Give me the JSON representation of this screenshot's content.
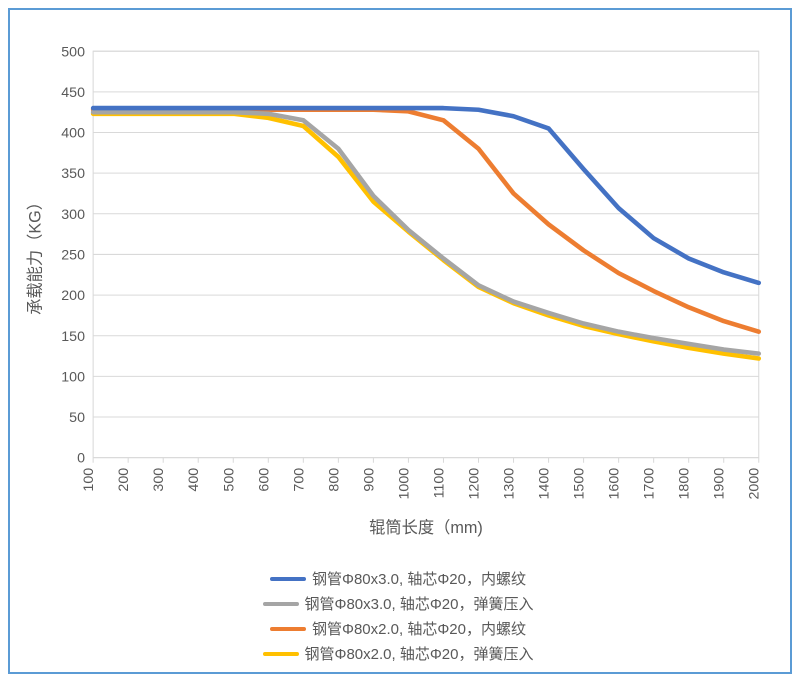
{
  "chart": {
    "type": "line",
    "background_color": "#ffffff",
    "frame_border_color": "#5b9bd5",
    "grid_color": "#d9d9d9",
    "axis_text_color": "#595959",
    "axis_title_fontsize": 16,
    "tick_fontsize": 14,
    "legend_fontsize": 15,
    "line_width": 4.5,
    "x": {
      "label": "辊筒长度（mm)",
      "min": 100,
      "max": 2000,
      "ticks": [
        100,
        200,
        300,
        400,
        500,
        600,
        700,
        800,
        900,
        1000,
        1100,
        1200,
        1300,
        1400,
        1500,
        1600,
        1700,
        1800,
        1900,
        2000
      ],
      "tick_rotation": -90
    },
    "y": {
      "label": "承载能力（KG）",
      "min": 0,
      "max": 500,
      "ticks": [
        0,
        50,
        100,
        150,
        200,
        250,
        300,
        350,
        400,
        450,
        500
      ]
    },
    "series": [
      {
        "name": "钢管Φ80x3.0, 轴芯Φ20，内螺纹",
        "color": "#4472c4",
        "y": [
          430,
          430,
          430,
          430,
          430,
          430,
          430,
          430,
          430,
          430,
          430,
          428,
          420,
          405,
          355,
          307,
          270,
          245,
          228,
          215
        ]
      },
      {
        "name": "钢管Φ80x3.0, 轴芯Φ20，弹簧压入",
        "color": "#a5a5a5",
        "y": [
          425,
          425,
          425,
          425,
          425,
          423,
          415,
          380,
          322,
          280,
          245,
          212,
          192,
          178,
          165,
          155,
          147,
          140,
          133,
          128
        ]
      },
      {
        "name": "钢管Φ80x2.0, 轴芯Φ20，内螺纹",
        "color": "#ed7d31",
        "y": [
          428,
          428,
          428,
          428,
          428,
          428,
          428,
          428,
          428,
          426,
          415,
          380,
          325,
          287,
          255,
          227,
          205,
          185,
          168,
          155
        ]
      },
      {
        "name": "钢管Φ80x2.0, 轴芯Φ20，弹簧压入",
        "color": "#ffc000",
        "y": [
          423,
          423,
          423,
          423,
          423,
          418,
          408,
          370,
          315,
          278,
          243,
          210,
          190,
          175,
          162,
          152,
          143,
          135,
          128,
          122
        ]
      }
    ]
  }
}
